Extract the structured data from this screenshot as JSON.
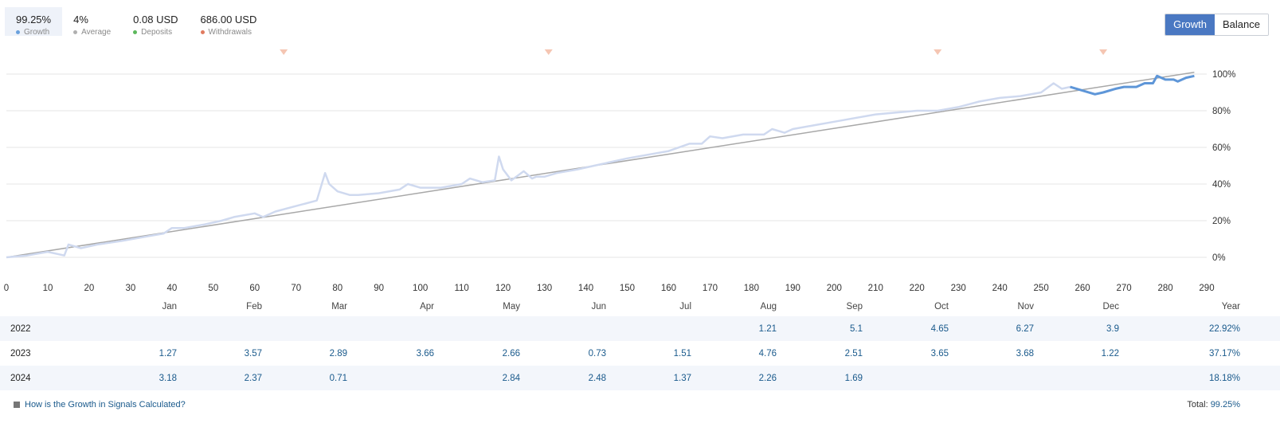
{
  "stats": [
    {
      "value": "99.25%",
      "label": "Growth",
      "color": "#6aa1dd"
    },
    {
      "value": "4%",
      "label": "Average",
      "color": "#b0b0b0"
    },
    {
      "value": "0.08 USD",
      "label": "Deposits",
      "color": "#5cb85c"
    },
    {
      "value": "686.00 USD",
      "label": "Withdrawals",
      "color": "#e07a5f"
    }
  ],
  "toggle": {
    "growth": "Growth",
    "balance": "Balance"
  },
  "colors": {
    "growth_old": "#cfd9ef",
    "growth_new": "#5e96d8",
    "average": "#a8a8a8",
    "marker": "#f5c6b3",
    "grid": "#e6e6e6"
  },
  "withdrawal_markers_x": [
    67,
    131,
    225,
    265
  ],
  "chart_data": {
    "type": "line",
    "xlim": [
      0,
      290
    ],
    "ylim": [
      0,
      100
    ],
    "x_ticks": [
      0,
      10,
      20,
      30,
      40,
      50,
      60,
      70,
      80,
      90,
      100,
      110,
      120,
      130,
      140,
      150,
      160,
      170,
      180,
      190,
      200,
      210,
      220,
      230,
      240,
      250,
      260,
      270,
      280,
      290
    ],
    "y_ticks": [
      0,
      20,
      40,
      60,
      80,
      100
    ],
    "y_tick_labels": [
      "0%",
      "20%",
      "40%",
      "60%",
      "80%",
      "100%"
    ],
    "series": [
      {
        "name": "Growth",
        "x": [
          0,
          5,
          10,
          14,
          15,
          18,
          22,
          28,
          33,
          38,
          40,
          43,
          48,
          52,
          55,
          60,
          62,
          65,
          70,
          75,
          77,
          78,
          80,
          83,
          85,
          90,
          95,
          97,
          100,
          102,
          105,
          110,
          112,
          115,
          118,
          119,
          120,
          122,
          125,
          127,
          128,
          130,
          133,
          138,
          142,
          146,
          150,
          155,
          160,
          165,
          168,
          170,
          173,
          178,
          183,
          185,
          188,
          190,
          195,
          200,
          205,
          210,
          215,
          220,
          225,
          230,
          235,
          240,
          245,
          250,
          253,
          255,
          257,
          260,
          263,
          265,
          268,
          270,
          273,
          275,
          277,
          278,
          280,
          282,
          283,
          285,
          287
        ],
        "y": [
          0,
          1,
          3,
          1,
          7,
          5,
          7,
          9,
          11,
          13,
          16,
          16,
          18,
          20,
          22,
          24,
          22,
          25,
          28,
          31,
          46,
          40,
          36,
          34,
          34,
          35,
          37,
          40,
          38,
          38,
          38,
          40,
          43,
          41,
          42,
          55,
          48,
          42,
          47,
          43,
          44,
          44,
          46,
          48,
          50,
          52,
          54,
          56,
          58,
          62,
          62,
          66,
          65,
          67,
          67,
          70,
          68,
          70,
          72,
          74,
          76,
          78,
          79,
          80,
          80,
          82,
          85,
          87,
          88,
          90,
          95,
          92,
          93,
          91,
          89,
          90,
          92,
          93,
          93,
          95,
          95,
          99,
          97,
          97,
          96,
          98,
          99
        ]
      },
      {
        "name": "Average",
        "x": [
          0,
          287
        ],
        "y": [
          0,
          101
        ]
      }
    ],
    "recent_from_x": 257
  },
  "table": {
    "months": [
      "Jan",
      "Feb",
      "Mar",
      "Apr",
      "May",
      "Jun",
      "Jul",
      "Aug",
      "Sep",
      "Oct",
      "Nov",
      "Dec"
    ],
    "year_header": "Year",
    "rows": [
      {
        "year": "2022",
        "values": [
          "",
          "",
          "",
          "",
          "",
          "",
          "",
          "1.21",
          "5.1",
          "4.65",
          "6.27",
          "3.9"
        ],
        "total": "22.92%"
      },
      {
        "year": "2023",
        "values": [
          "1.27",
          "3.57",
          "2.89",
          "3.66",
          "2.66",
          "0.73",
          "1.51",
          "4.76",
          "2.51",
          "3.65",
          "3.68",
          "1.22"
        ],
        "total": "37.17%"
      },
      {
        "year": "2024",
        "values": [
          "3.18",
          "2.37",
          "0.71",
          "",
          "2.84",
          "2.48",
          "1.37",
          "2.26",
          "1.69",
          "",
          "",
          ""
        ],
        "total": "18.18%"
      }
    ]
  },
  "footer": {
    "link": "How is the Growth in Signals Calculated?",
    "total_label": "Total:",
    "total_value": "99.25%"
  }
}
